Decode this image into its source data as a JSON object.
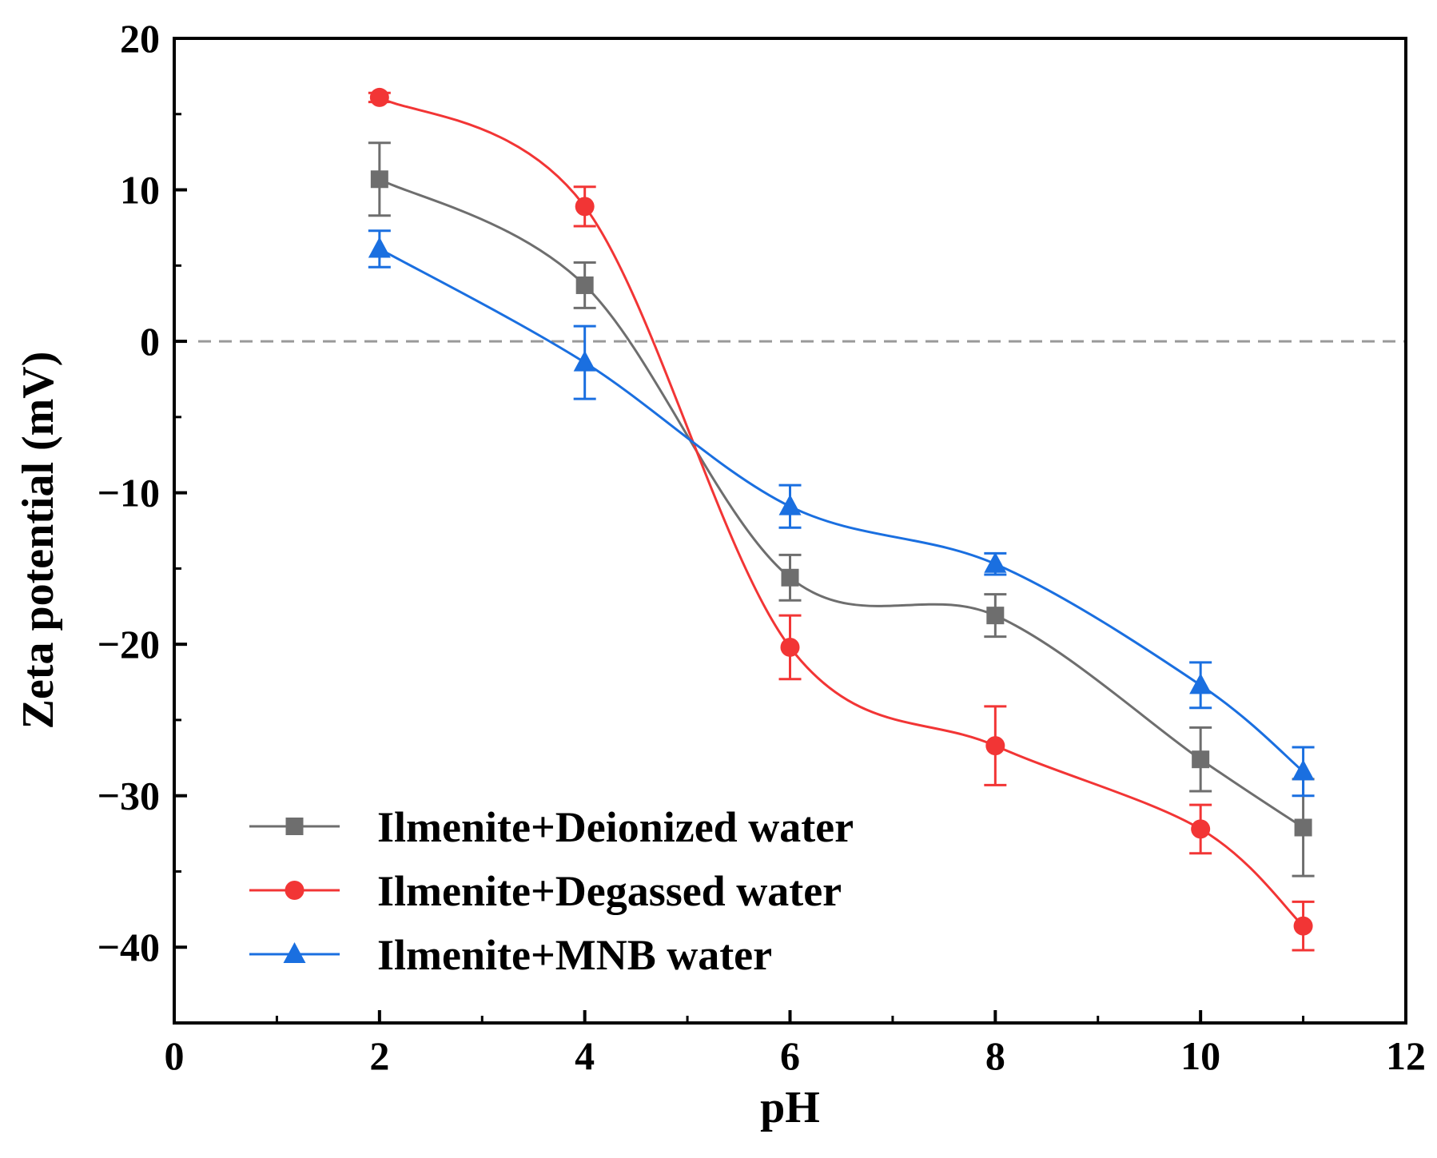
{
  "chart_data": {
    "type": "line",
    "xlabel": "pH",
    "ylabel": "Zeta potential (mV)",
    "xlim": [
      0,
      12
    ],
    "ylim": [
      -45,
      20
    ],
    "xticks": [
      0,
      2,
      4,
      6,
      8,
      10,
      12
    ],
    "xtick_labels": [
      "0",
      "2",
      "4",
      "6",
      "8",
      "10",
      "12"
    ],
    "yticks": [
      20,
      10,
      0,
      -10,
      -20,
      -30,
      -40
    ],
    "ytick_labels": [
      "20",
      "10",
      "0",
      "−10",
      "−20",
      "−30",
      "−40"
    ],
    "reference_line": {
      "y": 0,
      "style": "dashed",
      "color": "#999999"
    },
    "legend_position": "bottom-left",
    "series": [
      {
        "name": "Ilmenite+Deionized water",
        "color": "#6e6e6e",
        "marker": "square",
        "x": [
          2,
          4,
          6,
          8,
          10,
          11
        ],
        "y": [
          10.7,
          3.7,
          -15.6,
          -18.1,
          -27.6,
          -32.1
        ],
        "error": [
          2.4,
          1.5,
          1.5,
          1.4,
          2.1,
          3.2
        ]
      },
      {
        "name": "Ilmenite+Degassed water",
        "color": "#f23535",
        "marker": "circle",
        "x": [
          2,
          4,
          6,
          8,
          10,
          11
        ],
        "y": [
          16.1,
          8.9,
          -20.2,
          -26.7,
          -32.2,
          -38.6
        ],
        "error": [
          0.3,
          1.3,
          2.1,
          2.6,
          1.6,
          1.6
        ]
      },
      {
        "name": "Ilmenite+MNB water",
        "color": "#1a6fe0",
        "marker": "triangle",
        "x": [
          2,
          4,
          6,
          8,
          10,
          11
        ],
        "y": [
          6.1,
          -1.4,
          -10.9,
          -14.7,
          -22.7,
          -28.4
        ],
        "error": [
          1.2,
          2.4,
          1.4,
          0.7,
          1.5,
          1.6
        ]
      }
    ]
  }
}
